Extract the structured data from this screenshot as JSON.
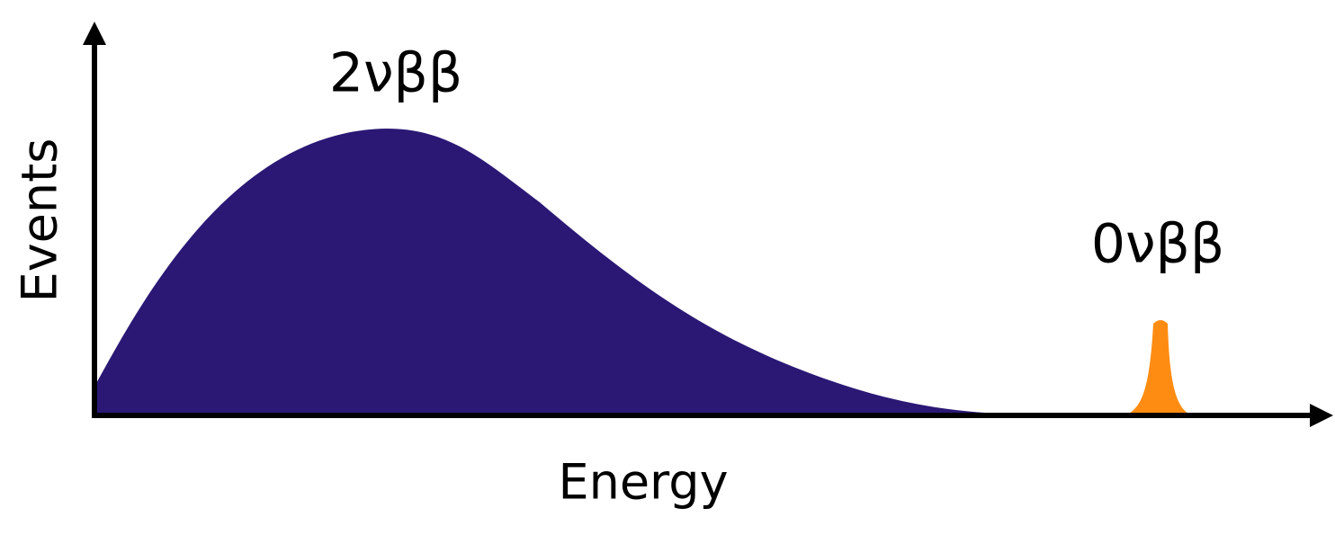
{
  "axes": {
    "x_label": "Energy",
    "y_label": "Events"
  },
  "annotations": [
    "2νββ",
    "0νββ"
  ]
}
